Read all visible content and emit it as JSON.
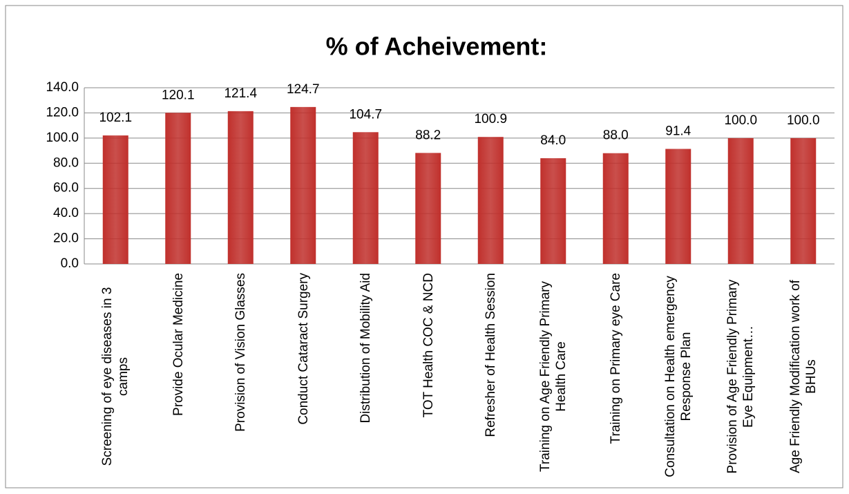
{
  "chart_data": {
    "type": "bar",
    "title": "% of Acheivement:",
    "categories": [
      "Screening of eye diseases in 3 camps",
      "Provide Ocular Medicine",
      "Provision of Vision Glasses",
      "Conduct Cataract Surgery",
      "Distribution of Mobility Aid",
      "TOT Health COC & NCD",
      "Refresher of Health Session",
      "Training on Age Friendly Primary Health Care",
      "Training on Primary eye Care",
      "Consultation on Health emergency Response Plan",
      "Provision of Age Friendly Primary Eye Equipment…",
      "Age Friendly Modification work of BHUs"
    ],
    "values": [
      102.1,
      120.1,
      121.4,
      124.7,
      104.7,
      88.2,
      100.9,
      84.0,
      88.0,
      91.4,
      100.0,
      100.0
    ],
    "value_labels": [
      "102.1",
      "120.1",
      "121.4",
      "124.7",
      "104.7",
      "88.2",
      "100.9",
      "84.0",
      "88.0",
      "91.4",
      "100.0",
      "100.0"
    ],
    "color": "#c0302c",
    "ylim": [
      0,
      140
    ],
    "yticks": [
      {
        "value": 0,
        "label": "0.0"
      },
      {
        "value": 20,
        "label": "20.0"
      },
      {
        "value": 40,
        "label": "40.0"
      },
      {
        "value": 60,
        "label": "60.0"
      },
      {
        "value": 80,
        "label": "80.0"
      },
      {
        "value": 100,
        "label": "100.0"
      },
      {
        "value": 120,
        "label": "120.0"
      },
      {
        "value": 140,
        "label": "140.0"
      }
    ],
    "grid": true
  }
}
